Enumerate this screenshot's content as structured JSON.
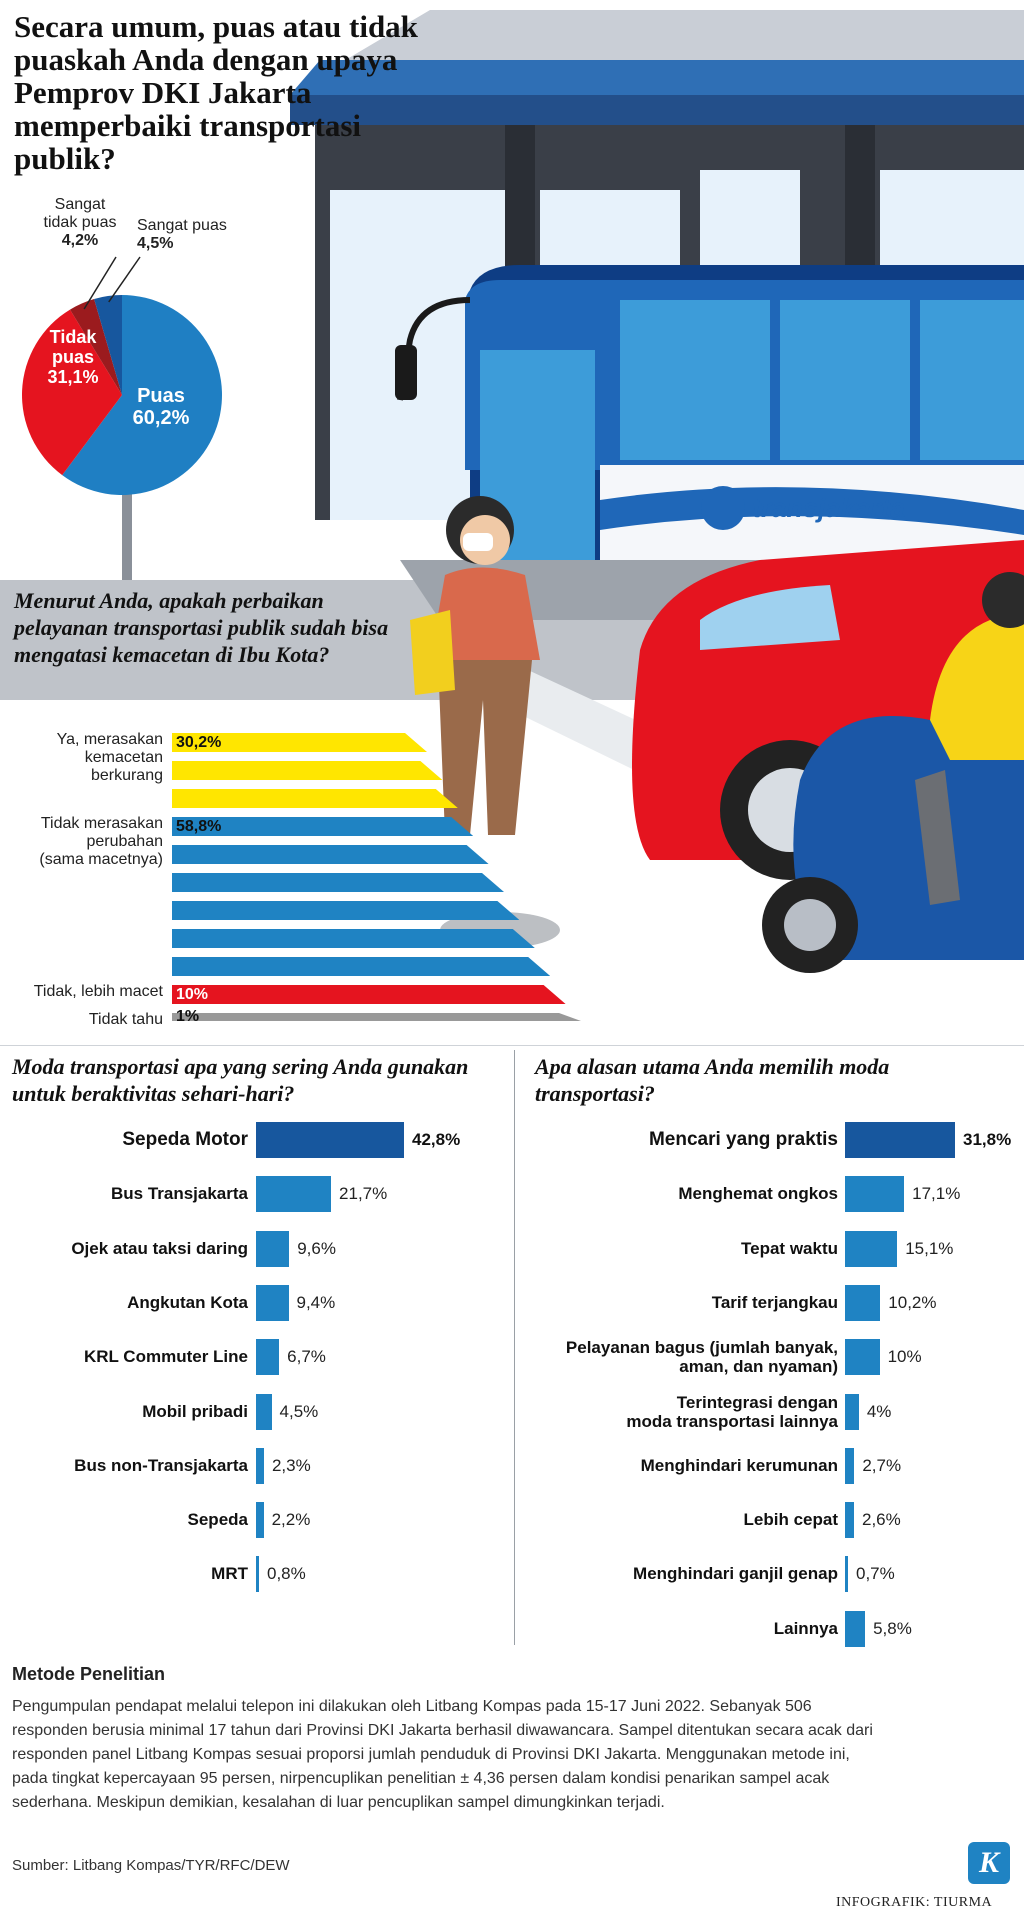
{
  "title": "Secara umum, puas atau tidak puaskah Anda dengan upaya Pemprov DKI Jakarta memperbaiki transportasi publik?",
  "pie": {
    "slices": [
      {
        "label_lines": [
          "Puas"
        ],
        "value_label": "60,2%",
        "value": 60.2,
        "color": "#1f7fc3"
      },
      {
        "label_lines": [
          "Tidak",
          "puas"
        ],
        "value_label": "31,1%",
        "value": 31.1,
        "color": "#e5141f"
      },
      {
        "label_lines": [
          "Sangat",
          "tidak puas"
        ],
        "value_label": "4,2%",
        "value": 4.2,
        "color": "#9b1b1e"
      },
      {
        "label_lines": [
          "Sangat puas"
        ],
        "value_label": "4,5%",
        "value": 4.5,
        "color": "#17579e"
      }
    ]
  },
  "question2": "Menurut Anda, apakah perbaikan pelayanan transportasi publik sudah bisa mengatasi kemacetan di Ibu Kota?",
  "stripes": {
    "items": [
      {
        "label_lines": [
          "Ya, merasakan",
          "kemacetan",
          "berkurang"
        ],
        "value_label": "30,2%",
        "value": 30.2,
        "color": "#ffe600"
      },
      {
        "label_lines": [
          "Tidak merasakan",
          "perubahan",
          "(sama macetnya)"
        ],
        "value_label": "58,8%",
        "value": 58.8,
        "color": "#1f83c3"
      },
      {
        "label_lines": [
          "Tidak, lebih macet"
        ],
        "value_label": "10%",
        "value": 10,
        "color": "#e5141f"
      },
      {
        "label_lines": [
          "Tidak tahu"
        ],
        "value_label": "1%",
        "value": 1,
        "color": "#999999"
      }
    ]
  },
  "logo_text": "transjakarta",
  "left_chart": {
    "question": "Moda transportasi apa yang sering Anda gunakan untuk beraktivitas sehari-hari?"
  },
  "right_chart": {
    "question": "Apa alasan utama Anda memilih moda transportasi?"
  },
  "chart_data": [
    {
      "type": "pie",
      "title": "Secara umum, puas atau tidak puaskah Anda dengan upaya Pemprov DKI Jakarta memperbaiki transportasi publik?",
      "categories": [
        "Puas",
        "Tidak puas",
        "Sangat tidak puas",
        "Sangat puas"
      ],
      "values": [
        60.2,
        31.1,
        4.2,
        4.5
      ]
    },
    {
      "type": "bar",
      "title": "Menurut Anda, apakah perbaikan pelayanan transportasi publik sudah bisa mengatasi kemacetan di Ibu Kota?",
      "categories": [
        "Ya, merasakan kemacetan berkurang",
        "Tidak merasakan perubahan (sama macetnya)",
        "Tidak, lebih macet",
        "Tidak tahu"
      ],
      "values": [
        30.2,
        58.8,
        10,
        1
      ]
    },
    {
      "type": "bar",
      "title": "Moda transportasi apa yang sering Anda gunakan untuk beraktivitas sehari-hari?",
      "categories": [
        "Sepeda Motor",
        "Bus Transjakarta",
        "Ojek atau taksi daring",
        "Angkutan Kota",
        "KRL Commuter Line",
        "Mobil pribadi",
        "Bus non-Transjakarta",
        "Sepeda",
        "MRT"
      ],
      "category_lines": [
        [
          "Sepeda Motor"
        ],
        [
          "Bus Transjakarta"
        ],
        [
          "Ojek atau taksi daring"
        ],
        [
          "Angkutan Kota"
        ],
        [
          "KRL Commuter Line"
        ],
        [
          "Mobil pribadi"
        ],
        [
          "Bus non-Transjakarta"
        ],
        [
          "Sepeda"
        ],
        [
          "MRT"
        ]
      ],
      "values": [
        42.8,
        21.7,
        9.6,
        9.4,
        6.7,
        4.5,
        2.3,
        2.2,
        0.8
      ],
      "value_labels": [
        "42,8%",
        "21,7%",
        "9,6%",
        "9,4%",
        "6,7%",
        "4,5%",
        "2,3%",
        "2,2%",
        "0,8%"
      ]
    },
    {
      "type": "bar",
      "title": "Apa alasan utama Anda memilih moda transportasi?",
      "categories": [
        "Mencari yang praktis",
        "Menghemat ongkos",
        "Tepat waktu",
        "Tarif terjangkau",
        "Pelayanan bagus (jumlah banyak, aman, dan nyaman)",
        "Terintegrasi dengan moda transportasi lainnya",
        "Menghindari kerumunan",
        "Lebih cepat",
        "Menghindari ganjil genap",
        "Lainnya"
      ],
      "category_lines": [
        [
          "Mencari yang praktis"
        ],
        [
          "Menghemat ongkos"
        ],
        [
          "Tepat waktu"
        ],
        [
          "Tarif terjangkau"
        ],
        [
          "Pelayanan bagus (jumlah banyak,",
          "aman, dan nyaman)"
        ],
        [
          "Terintegrasi dengan",
          "moda transportasi lainnya"
        ],
        [
          "Menghindari kerumunan"
        ],
        [
          "Lebih cepat"
        ],
        [
          "Menghindari ganjil genap"
        ],
        [
          "Lainnya"
        ]
      ],
      "values": [
        31.8,
        17.1,
        15.1,
        10.2,
        10,
        4,
        2.7,
        2.6,
        0.7,
        5.8
      ],
      "value_labels": [
        "31,8%",
        "17,1%",
        "15,1%",
        "10,2%",
        "10%",
        "4%",
        "2,7%",
        "2,6%",
        "0,7%",
        "5,8%"
      ]
    }
  ],
  "method": {
    "title": "Metode Penelitian",
    "lines": [
      "Pengumpulan pendapat melalui telepon ini dilakukan oleh Litbang Kompas pada 15-17 Juni 2022. Sebanyak 506",
      "responden berusia minimal 17 tahun dari Provinsi DKI Jakarta berhasil diwawancara. Sampel ditentukan secara acak dari",
      "responden panel Litbang Kompas sesuai proporsi jumlah penduduk di Provinsi DKI Jakarta. Menggunakan metode ini,",
      "pada tingkat kepercayaan 95 persen, nirpencuplikan penelitian ± 4,36 persen dalam kondisi penarikan sampel acak",
      "sederhana. Meskipun demikian, kesalahan di luar pencuplikan sampel dimungkinkan terjadi."
    ]
  },
  "source": "Sumber: Litbang Kompas/TYR/RFC/DEW",
  "credit": "INFOGRAFIK: TIURMA",
  "logo_letter": "K",
  "colors": {
    "blue": "#1f83c3",
    "dark_blue": "#17579e",
    "red": "#e5141f",
    "yellow": "#ffe600"
  }
}
